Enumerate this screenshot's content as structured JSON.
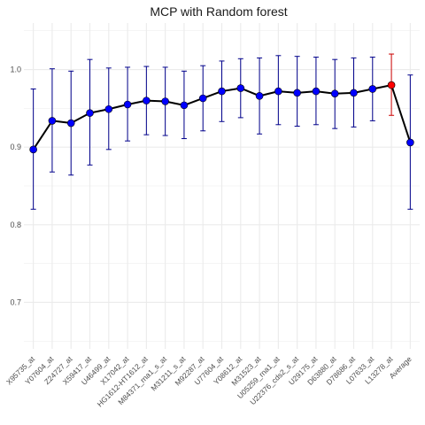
{
  "chart_data": {
    "type": "line",
    "title": "MCP with Random forest",
    "xlabel": "",
    "ylabel": "",
    "ylim": [
      0.64,
      1.06
    ],
    "yticks": [
      0.7,
      0.8,
      0.9,
      1.0
    ],
    "ytick_labels": [
      "0.7",
      "0.8",
      "0.9",
      "1.0"
    ],
    "grid": true,
    "categories": [
      "X95735_at",
      "Y07604_at",
      "Z24727_at",
      "X59417_at",
      "U46499_at",
      "X17042_at",
      "HG1612-HT1612_at",
      "M84371_rna1_s_at",
      "M31211_s_at",
      "M92287_at",
      "U77604_at",
      "Y08612_at",
      "M31523_at",
      "U05259_rna1_at",
      "U22376_cds2_s_at",
      "U29175_at",
      "D63880_at",
      "D78686_at",
      "L07633_at",
      "L13278_at",
      "Average"
    ],
    "values": [
      0.897,
      0.934,
      0.931,
      0.944,
      0.949,
      0.955,
      0.96,
      0.959,
      0.954,
      0.963,
      0.972,
      0.976,
      0.966,
      0.972,
      0.97,
      0.972,
      0.969,
      0.97,
      0.975,
      0.98,
      0.906
    ],
    "error_lower": [
      0.82,
      0.868,
      0.864,
      0.877,
      0.897,
      0.908,
      0.916,
      0.915,
      0.911,
      0.921,
      0.933,
      0.938,
      0.917,
      0.929,
      0.927,
      0.929,
      0.924,
      0.926,
      0.934,
      0.941,
      0.82
    ],
    "error_upper": [
      0.975,
      1.001,
      0.998,
      1.013,
      1.002,
      1.003,
      1.004,
      1.003,
      0.998,
      1.005,
      1.011,
      1.014,
      1.015,
      1.018,
      1.017,
      1.016,
      1.013,
      1.015,
      1.016,
      1.02,
      0.993
    ],
    "highlight_index": 19,
    "colors": {
      "line": "#000000",
      "point": "#0000ff",
      "error_bar": "#00008b",
      "highlight_point": "#ff0000",
      "highlight_error_bar": "#cc0000",
      "grid": "#ebebeb"
    }
  }
}
